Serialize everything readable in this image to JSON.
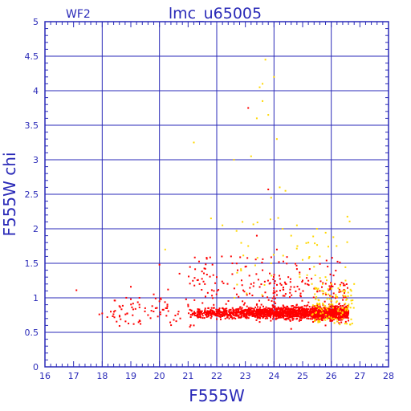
{
  "chart_data": {
    "type": "scatter",
    "title": "lmc_u65005",
    "subtitle": "WF2",
    "xlabel": "F555W",
    "ylabel": "F555W chi",
    "xlim": [
      16,
      28
    ],
    "ylim": [
      0,
      5
    ],
    "grid": true,
    "x_ticks": [
      "16",
      "17",
      "18",
      "19",
      "20",
      "21",
      "22",
      "23",
      "24",
      "25",
      "26",
      "27",
      "28"
    ],
    "y_ticks": [
      "0",
      "0.5",
      "1",
      "1.5",
      "2",
      "2.5",
      "3",
      "3.5",
      "4",
      "4.5",
      "5"
    ],
    "colors": {
      "axis": "#2a2ab8",
      "grid": "#2a2ab8",
      "red_points": "#ff0000",
      "yellow_points": "#ffd700"
    },
    "series": [
      {
        "color": "red",
        "points": [
          [
            17.1,
            1.11
          ],
          [
            17.9,
            0.76
          ],
          [
            18.3,
            0.8
          ],
          [
            18.6,
            0.88
          ],
          [
            19.0,
            0.98
          ],
          [
            19.0,
            1.16
          ],
          [
            19.1,
            0.62
          ],
          [
            19.3,
            1.0
          ],
          [
            19.5,
            0.85
          ],
          [
            19.6,
            0.75
          ],
          [
            19.8,
            1.05
          ],
          [
            20.0,
            1.48
          ],
          [
            20.0,
            0.95
          ],
          [
            20.3,
            1.12
          ],
          [
            20.5,
            0.68
          ],
          [
            20.7,
            1.35
          ],
          [
            21.0,
            0.9
          ],
          [
            21.2,
            0.6
          ],
          [
            21.4,
            1.2
          ],
          [
            21.6,
            1.42
          ],
          [
            21.7,
            0.85
          ],
          [
            21.9,
            1.1
          ],
          [
            22.0,
            1.3
          ],
          [
            22.3,
            0.7
          ],
          [
            22.5,
            1.6
          ],
          [
            22.7,
            1.05
          ],
          [
            22.9,
            0.95
          ],
          [
            23.0,
            1.45
          ],
          [
            23.1,
            3.75
          ],
          [
            23.2,
            1.2
          ],
          [
            23.4,
            1.9
          ],
          [
            23.5,
            0.65
          ],
          [
            23.6,
            1.4
          ],
          [
            23.8,
            2.57
          ],
          [
            24.0,
            1.02
          ],
          [
            24.1,
            1.7
          ],
          [
            24.3,
            0.82
          ],
          [
            24.5,
            1.3
          ],
          [
            24.6,
            0.55
          ],
          [
            24.8,
            0.9
          ],
          [
            25.0,
            1.25
          ],
          [
            25.2,
            0.7
          ],
          [
            25.4,
            0.88
          ],
          [
            25.6,
            1.1
          ],
          [
            25.8,
            0.6
          ],
          [
            26.0,
            0.95
          ],
          [
            26.2,
            0.8
          ],
          [
            26.4,
            0.72
          ]
        ]
      },
      {
        "color": "yellow",
        "points": [
          [
            20.2,
            1.7
          ],
          [
            21.2,
            3.25
          ],
          [
            21.8,
            2.15
          ],
          [
            22.2,
            2.05
          ],
          [
            22.6,
            3.0
          ],
          [
            22.9,
            2.1
          ],
          [
            23.1,
            1.75
          ],
          [
            23.2,
            3.05
          ],
          [
            23.4,
            3.6
          ],
          [
            23.5,
            4.05
          ],
          [
            23.6,
            4.1
          ],
          [
            23.6,
            3.85
          ],
          [
            23.7,
            4.45
          ],
          [
            23.8,
            3.65
          ],
          [
            23.9,
            2.45
          ],
          [
            24.0,
            4.2
          ],
          [
            24.1,
            3.3
          ],
          [
            24.2,
            2.6
          ],
          [
            24.3,
            2.0
          ],
          [
            24.4,
            2.55
          ],
          [
            24.6,
            1.9
          ],
          [
            24.8,
            2.05
          ],
          [
            25.0,
            1.55
          ],
          [
            25.2,
            1.8
          ],
          [
            25.4,
            1.45
          ],
          [
            25.6,
            1.6
          ],
          [
            25.8,
            1.3
          ],
          [
            25.9,
            1.05
          ],
          [
            26.0,
            1.2
          ],
          [
            26.2,
            0.95
          ],
          [
            26.3,
            1.1
          ],
          [
            26.5,
            1.25
          ],
          [
            26.7,
            1.1
          ],
          [
            26.8,
            1.2
          ],
          [
            25.5,
            2.0
          ],
          [
            25.7,
            1.2
          ],
          [
            24.9,
            1.3
          ],
          [
            23.9,
            1.5
          ],
          [
            26.4,
            0.85
          ],
          [
            26.1,
            0.7
          ]
        ]
      }
    ]
  }
}
